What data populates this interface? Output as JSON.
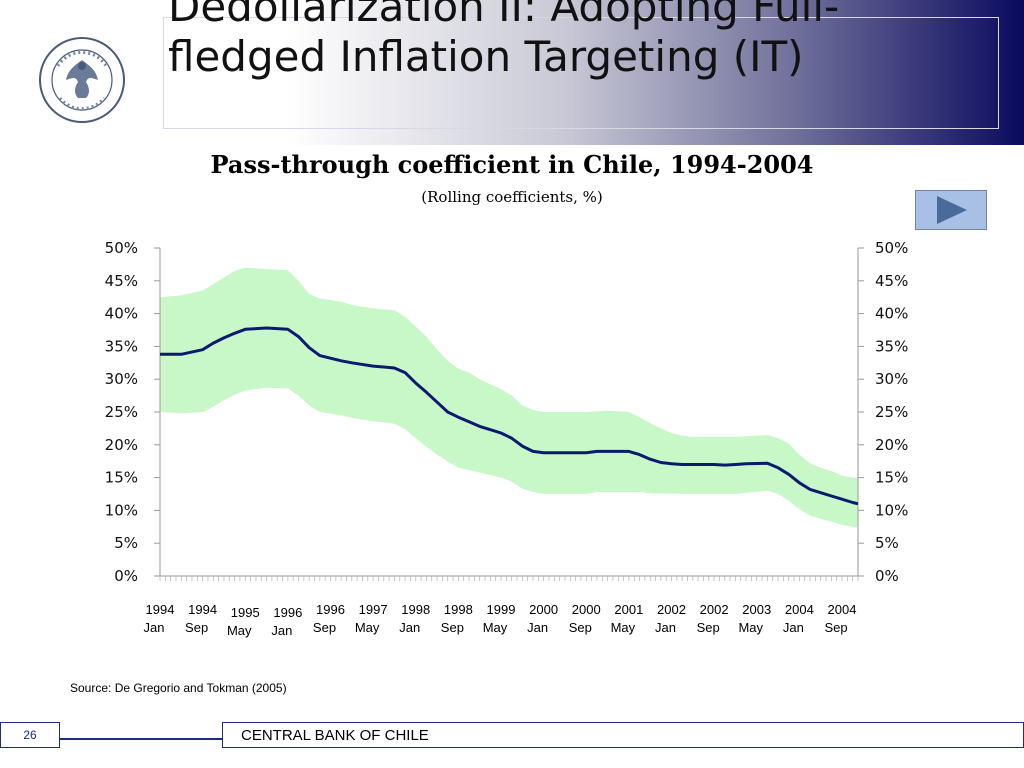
{
  "slide": {
    "title": "Dedollarization II: Adopting Full-fledged Inflation Targeting (IT)",
    "page_number": "26",
    "footer": "CENTRAL BANK OF CHILE",
    "source": "Source: De Gregorio and Tokman (2005)"
  },
  "colors": {
    "line": "#0b1a6e",
    "band": "#c8f7c8",
    "header_dark": "#0a0a5e",
    "footer_blue": "#1a2f80",
    "button": "#a9c0e6"
  },
  "chart_data": {
    "type": "line",
    "title": "Pass-through coefficient in Chile, 1994-2004",
    "subtitle": "(Rolling coefficients, %)",
    "ylim": [
      0,
      50
    ],
    "yticks": [
      "0%",
      "5%",
      "10%",
      "15%",
      "20%",
      "25%",
      "30%",
      "35%",
      "40%",
      "45%",
      "50%"
    ],
    "secondary_y": true,
    "grid": false,
    "x_labels": [
      {
        "top": "1994",
        "bottom": "Jan",
        "x": 0
      },
      {
        "top": "1994",
        "bottom": "Sep",
        "x": 8
      },
      {
        "top": "1995",
        "bottom": "May",
        "x": 16
      },
      {
        "top": "1996",
        "bottom": "Jan",
        "x": 24
      },
      {
        "top": "1996",
        "bottom": "Sep",
        "x": 32
      },
      {
        "top": "1997",
        "bottom": "May",
        "x": 40
      },
      {
        "top": "1998",
        "bottom": "Jan",
        "x": 48
      },
      {
        "top": "1998",
        "bottom": "Sep",
        "x": 56
      },
      {
        "top": "1999",
        "bottom": "May",
        "x": 64
      },
      {
        "top": "2000",
        "bottom": "Jan",
        "x": 72
      },
      {
        "top": "2000",
        "bottom": "Sep",
        "x": 80
      },
      {
        "top": "2001",
        "bottom": "May",
        "x": 88
      },
      {
        "top": "2002",
        "bottom": "Jan",
        "x": 96
      },
      {
        "top": "2002",
        "bottom": "Sep",
        "x": 104
      },
      {
        "top": "2003",
        "bottom": "May",
        "x": 112
      },
      {
        "top": "2004",
        "bottom": "Jan",
        "x": 120
      },
      {
        "top": "2004",
        "bottom": "Sep",
        "x": 128
      }
    ],
    "x_range": [
      0,
      131
    ],
    "series": [
      {
        "role": "coefficient",
        "points": [
          [
            0,
            33.8
          ],
          [
            4,
            33.8
          ],
          [
            8,
            34.5
          ],
          [
            10,
            35.5
          ],
          [
            12,
            36.3
          ],
          [
            14,
            37
          ],
          [
            16,
            37.6
          ],
          [
            20,
            37.8
          ],
          [
            24,
            37.6
          ],
          [
            26,
            36.5
          ],
          [
            28,
            34.8
          ],
          [
            30,
            33.6
          ],
          [
            32,
            33.2
          ],
          [
            34,
            32.8
          ],
          [
            36,
            32.5
          ],
          [
            40,
            32
          ],
          [
            44,
            31.7
          ],
          [
            46,
            31
          ],
          [
            48,
            29.4
          ],
          [
            50,
            28
          ],
          [
            52,
            26.5
          ],
          [
            54,
            25
          ],
          [
            56,
            24.2
          ],
          [
            58,
            23.5
          ],
          [
            60,
            22.8
          ],
          [
            62,
            22.3
          ],
          [
            64,
            21.8
          ],
          [
            66,
            21
          ],
          [
            68,
            19.8
          ],
          [
            70,
            19
          ],
          [
            72,
            18.8
          ],
          [
            80,
            18.8
          ],
          [
            82,
            19
          ],
          [
            88,
            19
          ],
          [
            90,
            18.5
          ],
          [
            92,
            17.8
          ],
          [
            94,
            17.3
          ],
          [
            96,
            17.1
          ],
          [
            98,
            17
          ],
          [
            104,
            17
          ],
          [
            106,
            16.9
          ],
          [
            108,
            17
          ],
          [
            110,
            17.1
          ],
          [
            114,
            17.2
          ],
          [
            116,
            16.5
          ],
          [
            118,
            15.5
          ],
          [
            120,
            14.2
          ],
          [
            122,
            13.2
          ],
          [
            124,
            12.7
          ],
          [
            126,
            12.2
          ],
          [
            128,
            11.7
          ],
          [
            130,
            11.2
          ],
          [
            131,
            11
          ]
        ]
      },
      {
        "role": "band-upper",
        "points": [
          [
            0,
            42.5
          ],
          [
            4,
            42.8
          ],
          [
            8,
            43.5
          ],
          [
            10,
            44.5
          ],
          [
            12,
            45.5
          ],
          [
            14,
            46.5
          ],
          [
            16,
            47
          ],
          [
            20,
            46.8
          ],
          [
            24,
            46.6
          ],
          [
            26,
            45
          ],
          [
            28,
            43
          ],
          [
            30,
            42.3
          ],
          [
            34,
            41.8
          ],
          [
            36,
            41.3
          ],
          [
            40,
            40.8
          ],
          [
            44,
            40.5
          ],
          [
            46,
            39.5
          ],
          [
            48,
            38
          ],
          [
            50,
            36.5
          ],
          [
            52,
            34.5
          ],
          [
            54,
            32.8
          ],
          [
            56,
            31.6
          ],
          [
            58,
            31
          ],
          [
            60,
            30
          ],
          [
            62,
            29.2
          ],
          [
            64,
            28.5
          ],
          [
            66,
            27.5
          ],
          [
            68,
            26
          ],
          [
            70,
            25.3
          ],
          [
            72,
            25
          ],
          [
            80,
            25
          ],
          [
            84,
            25.2
          ],
          [
            88,
            25
          ],
          [
            90,
            24.2
          ],
          [
            92,
            23.3
          ],
          [
            94,
            22.5
          ],
          [
            96,
            21.8
          ],
          [
            98,
            21.4
          ],
          [
            100,
            21.2
          ],
          [
            108,
            21.2
          ],
          [
            110,
            21.3
          ],
          [
            114,
            21.5
          ],
          [
            116,
            21
          ],
          [
            118,
            20.2
          ],
          [
            120,
            18.5
          ],
          [
            122,
            17.2
          ],
          [
            124,
            16.5
          ],
          [
            126,
            16
          ],
          [
            128,
            15.3
          ],
          [
            130,
            15
          ],
          [
            131,
            15
          ]
        ]
      },
      {
        "role": "band-lower",
        "points": [
          [
            0,
            25
          ],
          [
            4,
            24.8
          ],
          [
            8,
            25
          ],
          [
            10,
            25.8
          ],
          [
            12,
            26.8
          ],
          [
            14,
            27.6
          ],
          [
            16,
            28.3
          ],
          [
            20,
            28.7
          ],
          [
            24,
            28.6
          ],
          [
            26,
            27.5
          ],
          [
            28,
            26
          ],
          [
            30,
            25
          ],
          [
            34,
            24.5
          ],
          [
            36,
            24.1
          ],
          [
            40,
            23.6
          ],
          [
            44,
            23.2
          ],
          [
            46,
            22.4
          ],
          [
            48,
            21
          ],
          [
            50,
            19.7
          ],
          [
            52,
            18.5
          ],
          [
            54,
            17.5
          ],
          [
            56,
            16.5
          ],
          [
            60,
            15.8
          ],
          [
            64,
            15
          ],
          [
            66,
            14.4
          ],
          [
            68,
            13.3
          ],
          [
            70,
            12.8
          ],
          [
            72,
            12.5
          ],
          [
            80,
            12.5
          ],
          [
            82,
            12.8
          ],
          [
            90,
            12.8
          ],
          [
            92,
            12.6
          ],
          [
            100,
            12.5
          ],
          [
            108,
            12.5
          ],
          [
            110,
            12.7
          ],
          [
            114,
            13
          ],
          [
            116,
            12.5
          ],
          [
            118,
            11.5
          ],
          [
            120,
            10.2
          ],
          [
            122,
            9.2
          ],
          [
            124,
            8.7
          ],
          [
            126,
            8.3
          ],
          [
            128,
            7.8
          ],
          [
            130,
            7.5
          ],
          [
            131,
            7.4
          ]
        ]
      }
    ]
  }
}
